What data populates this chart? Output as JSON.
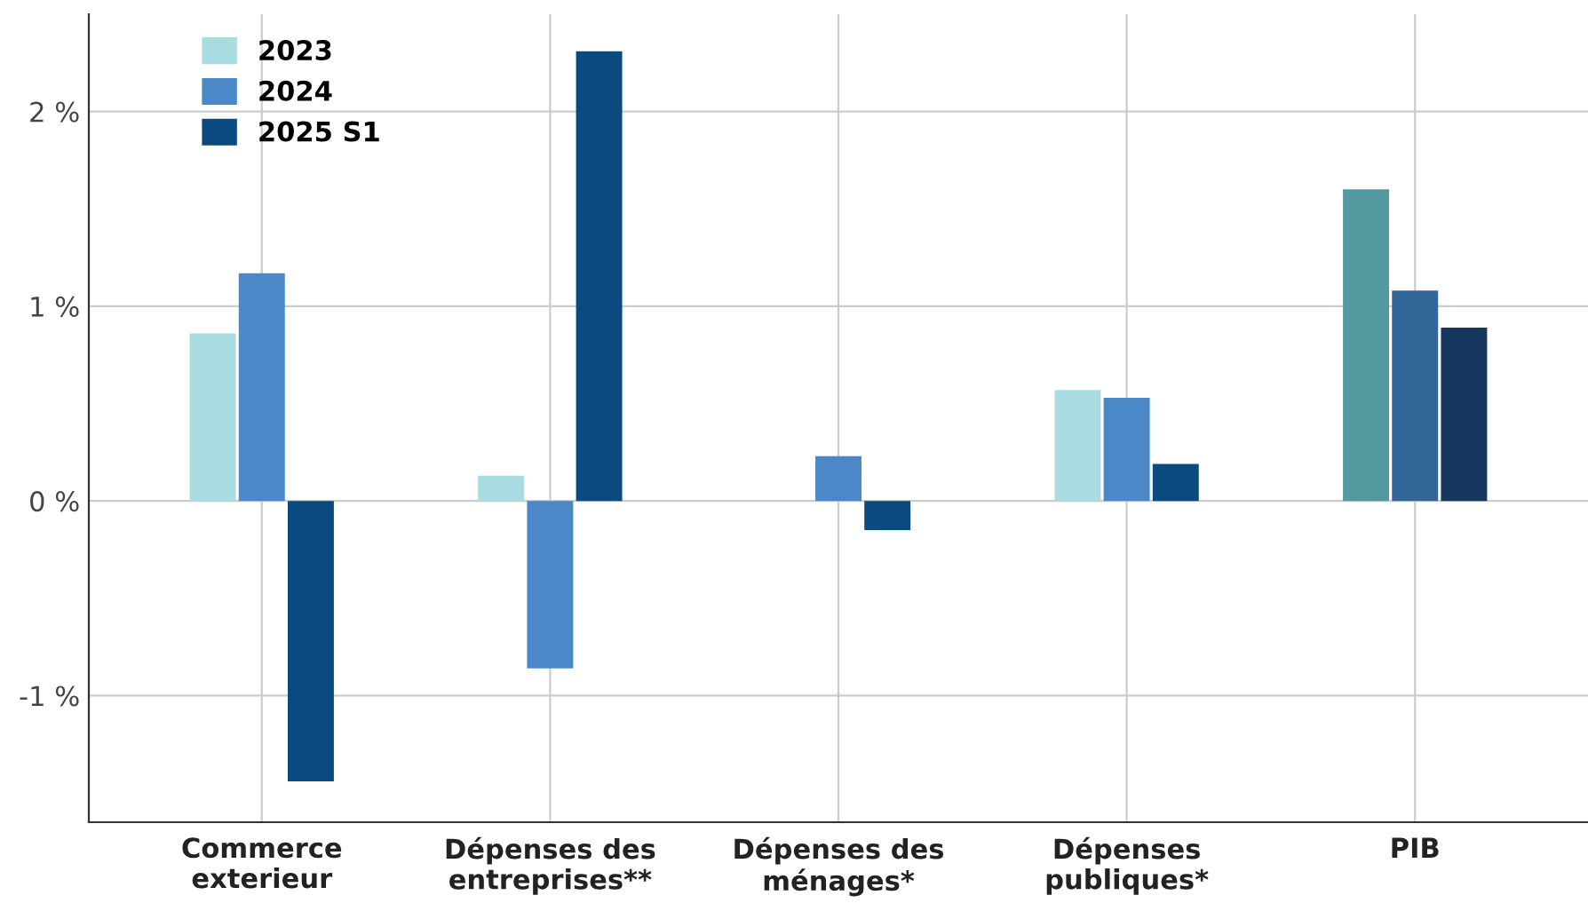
{
  "chart_data": {
    "type": "bar",
    "categories": [
      "Commerce\nexterieur",
      "Dépenses des\nentreprises**",
      "Dépenses des\nménages*",
      "Dépenses\npubliques*",
      "PIB"
    ],
    "series": [
      {
        "name": "2023",
        "color": "#a8dce0",
        "colors": [
          "#a8dce0",
          "#a8dce0",
          "#a8dce0",
          "#a8dce0",
          "#5499a0"
        ],
        "values": [
          0.86,
          0.13,
          null,
          0.57,
          1.6
        ]
      },
      {
        "name": "2024",
        "color": "#4a88c8",
        "colors": [
          "#4a88c8",
          "#4a88c8",
          "#4a88c8",
          "#4a88c8",
          "#336699"
        ],
        "values": [
          1.17,
          -0.86,
          0.23,
          0.53,
          1.08
        ]
      },
      {
        "name": "2025 S1",
        "color": "#0b4a7e",
        "colors": [
          "#0b4a7e",
          "#0b4a7e",
          "#0b4a7e",
          "#0b4a7e",
          "#15365e"
        ],
        "values": [
          -1.44,
          2.31,
          -0.15,
          0.19,
          0.89
        ]
      }
    ],
    "ylim": [
      -1.65,
      2.5
    ],
    "yticks": [
      {
        "value": -1,
        "label": "-1 %"
      },
      {
        "value": 0,
        "label": "0 %"
      },
      {
        "value": 1,
        "label": "1 %"
      },
      {
        "value": 2,
        "label": "2 %"
      }
    ],
    "grid": true,
    "legend": "top left"
  }
}
